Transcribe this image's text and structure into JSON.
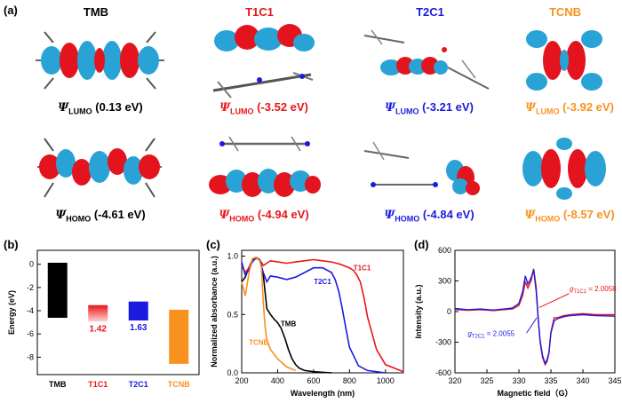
{
  "panel_labels": {
    "a": "(a)",
    "b": "(b)",
    "c": "(c)",
    "d": "(d)"
  },
  "molecules": [
    {
      "name": "TMB",
      "color": "#000000",
      "lumo_sub": "LUMO",
      "lumo_value": "(0.13 eV)",
      "homo_sub": "HOMO",
      "homo_value": "(-4.61 eV)"
    },
    {
      "name": "T1C1",
      "color": "#e8161b",
      "lumo_sub": "LUMO",
      "lumo_value": "(-3.52 eV)",
      "homo_sub": "HOMO",
      "homo_value": "(-4.94 eV)"
    },
    {
      "name": "T2C1",
      "color": "#1b1bdf",
      "lumo_sub": "LUMO",
      "lumo_value": "(-3.21 eV)",
      "homo_sub": "HOMO",
      "homo_value": "(-4.84 eV)"
    },
    {
      "name": "TCNB",
      "color": "#f7921e",
      "lumo_sub": "LUMO",
      "lumo_value": "(-3.92 eV)",
      "homo_sub": "HOMO",
      "homo_value": "(-8.57 eV)"
    }
  ],
  "psi_symbol": "Ψ",
  "colors": {
    "orbital_pos": "#e3141e",
    "orbital_neg": "#29a3d6"
  },
  "chart_data": [
    {
      "type": "bar",
      "ylabel": "Energy (eV)",
      "ylim": [
        -9.5,
        1.2
      ],
      "yticks": [
        0,
        -2,
        -4,
        -6,
        -8
      ],
      "ytick_labels": [
        "0",
        "-2",
        "-4",
        "-6",
        "-8"
      ],
      "categories": [
        "TMB",
        "T1C1",
        "T2C1",
        "TCNB"
      ],
      "category_colors": [
        "#000000",
        "#e8161b",
        "#1b1bdf",
        "#f7921e"
      ],
      "lumo": [
        0.13,
        -3.52,
        -3.21,
        -3.92
      ],
      "homo": [
        -4.61,
        -4.94,
        -4.84,
        -8.57
      ],
      "bar_labels": [
        "",
        "1.42",
        "1.63",
        ""
      ],
      "bar_label_colors": [
        "#000000",
        "#e8161b",
        "#1b1bdf",
        "#f7921e"
      ]
    },
    {
      "type": "line",
      "xlabel": "Wavelength (nm)",
      "ylabel": "Normalized absorbance (a.u.)",
      "xlim": [
        200,
        1100
      ],
      "ylim": [
        0,
        1.05
      ],
      "xticks": [
        200,
        400,
        600,
        800,
        1000
      ],
      "xtick_labels": [
        "200",
        "400",
        "600",
        "800",
        "1000"
      ],
      "yticks": [
        0.0,
        0.5,
        1.0
      ],
      "ytick_labels": [
        "0.0",
        "0.5",
        "1.0"
      ],
      "series": [
        {
          "name": "TMB",
          "color": "#000000",
          "x": [
            200,
            220,
            240,
            260,
            280,
            300,
            320,
            340,
            360,
            380,
            400,
            420,
            440,
            460,
            480,
            500,
            520,
            550,
            600,
            700
          ],
          "y": [
            0.78,
            0.82,
            0.9,
            0.97,
            0.99,
            0.97,
            0.84,
            0.55,
            0.5,
            0.46,
            0.43,
            0.38,
            0.3,
            0.2,
            0.12,
            0.07,
            0.04,
            0.02,
            0.01,
            0.0
          ]
        },
        {
          "name": "T1C1",
          "color": "#e8161b",
          "x": [
            200,
            220,
            240,
            260,
            280,
            300,
            320,
            340,
            360,
            400,
            450,
            500,
            550,
            600,
            650,
            700,
            750,
            800,
            820,
            840,
            860,
            880,
            900,
            950,
            1000,
            1100
          ],
          "y": [
            0.92,
            0.86,
            0.9,
            0.96,
            0.98,
            0.97,
            0.92,
            0.94,
            0.96,
            0.95,
            0.94,
            0.95,
            0.96,
            0.97,
            0.96,
            0.95,
            0.93,
            0.9,
            0.88,
            0.84,
            0.78,
            0.65,
            0.48,
            0.2,
            0.07,
            0.01
          ]
        },
        {
          "name": "T2C1",
          "color": "#1b1bdf",
          "x": [
            200,
            220,
            240,
            260,
            280,
            300,
            320,
            340,
            360,
            400,
            450,
            500,
            550,
            600,
            650,
            700,
            720,
            740,
            760,
            780,
            800,
            850,
            900,
            1000
          ],
          "y": [
            0.95,
            0.84,
            0.88,
            0.95,
            0.99,
            0.97,
            0.86,
            0.78,
            0.83,
            0.82,
            0.8,
            0.82,
            0.86,
            0.9,
            0.9,
            0.86,
            0.8,
            0.7,
            0.55,
            0.38,
            0.22,
            0.06,
            0.02,
            0.0
          ]
        },
        {
          "name": "TCNB",
          "color": "#f7921e",
          "x": [
            200,
            220,
            240,
            260,
            280,
            300,
            310,
            320,
            330,
            340,
            360,
            400,
            450,
            500
          ],
          "y": [
            0.78,
            0.66,
            0.85,
            0.98,
            0.99,
            0.96,
            0.9,
            0.6,
            0.4,
            0.28,
            0.2,
            0.12,
            0.05,
            0.02
          ]
        }
      ],
      "annotations": [
        {
          "text": "T1C1",
          "color": "#e8161b",
          "x": 870,
          "y": 0.88
        },
        {
          "text": "T2C1",
          "color": "#1b1bdf",
          "x": 650,
          "y": 0.76
        },
        {
          "text": "TMB",
          "color": "#000000",
          "x": 460,
          "y": 0.4
        },
        {
          "text": "TCNB",
          "color": "#f7921e",
          "x": 295,
          "y": 0.24
        }
      ]
    },
    {
      "type": "line",
      "xlabel": "Magnetic field（G）",
      "ylabel": "Intensity (a.u.)",
      "xlim": [
        320,
        345
      ],
      "ylim": [
        -600,
        600
      ],
      "xticks": [
        320,
        325,
        330,
        335,
        340,
        345
      ],
      "xtick_labels": [
        "320",
        "325",
        "330",
        "335",
        "340",
        "345"
      ],
      "yticks": [
        -600,
        -300,
        0,
        300,
        600
      ],
      "ytick_labels": [
        "-600",
        "-300",
        "0",
        "300",
        "600"
      ],
      "series": [
        {
          "name": "T1C1",
          "color": "#e8161b",
          "x": [
            320,
            322,
            324,
            326,
            328,
            329,
            330,
            330.6,
            331,
            331.4,
            331.9,
            332.3,
            332.7,
            333,
            333.3,
            333.7,
            334.1,
            334.4,
            334.7,
            335,
            335.5,
            336,
            337,
            338,
            340,
            342,
            345
          ],
          "y": [
            20,
            12,
            18,
            10,
            20,
            25,
            60,
            160,
            290,
            230,
            300,
            420,
            240,
            -50,
            -300,
            -450,
            -520,
            -490,
            -410,
            -200,
            -60,
            -60,
            -40,
            -30,
            -20,
            -30,
            -30
          ]
        },
        {
          "name": "T2C1",
          "color": "#1b1bdf",
          "x": [
            320,
            322,
            324,
            326,
            328,
            329,
            330,
            330.6,
            331,
            331.4,
            331.9,
            332.3,
            332.7,
            333,
            333.3,
            333.7,
            334.1,
            334.4,
            334.7,
            335,
            335.5,
            336,
            337,
            338,
            340,
            342,
            345
          ],
          "y": [
            30,
            18,
            25,
            15,
            28,
            35,
            80,
            200,
            350,
            270,
            330,
            410,
            200,
            -60,
            -280,
            -430,
            -510,
            -470,
            -400,
            -210,
            -90,
            -70,
            -50,
            -40,
            -30,
            -40,
            -45
          ]
        }
      ],
      "annotations": [
        {
          "name": "g-t1c1",
          "prefix": "g",
          "sub": "T1C1",
          "value": " = 2.0058",
          "color": "#e8161b"
        },
        {
          "name": "g-t2c1",
          "prefix": "g",
          "sub": "T2C1",
          "value": " = 2.0055",
          "color": "#1b1bdf"
        }
      ]
    }
  ]
}
